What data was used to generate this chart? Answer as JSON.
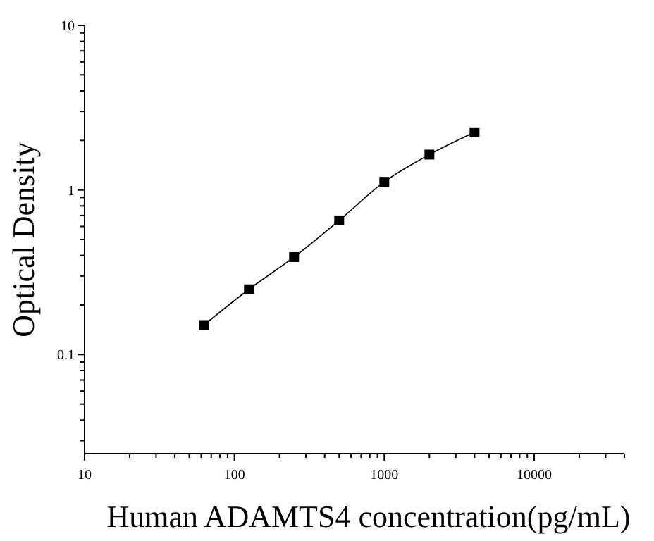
{
  "chart_data": {
    "type": "line",
    "xlabel": "Human ADAMTS4 concentration(pg/mL)",
    "ylabel": "Optical Density",
    "log": "xy",
    "marker": "square",
    "line_style": "solid",
    "grid": false,
    "xlim": [
      10,
      40000
    ],
    "ylim": [
      0.025,
      10
    ],
    "xticks": [
      10,
      {
        "value": 20,
        "label": null
      },
      {
        "value": 30,
        "label": null
      },
      {
        "value": 40,
        "label": null
      },
      {
        "value": 50,
        "label": null
      },
      {
        "value": 60,
        "label": null
      },
      {
        "value": 70,
        "label": null
      },
      {
        "value": 80,
        "label": null
      },
      {
        "value": 90,
        "label": null
      },
      100,
      {
        "value": 200,
        "label": null
      },
      {
        "value": 300,
        "label": null
      },
      {
        "value": 400,
        "label": null
      },
      {
        "value": 500,
        "label": null
      },
      {
        "value": 600,
        "label": null
      },
      {
        "value": 700,
        "label": null
      },
      {
        "value": 800,
        "label": null
      },
      {
        "value": 900,
        "label": null
      },
      1000,
      {
        "value": 2000,
        "label": null
      },
      {
        "value": 3000,
        "label": null
      },
      {
        "value": 4000,
        "label": null
      },
      {
        "value": 5000,
        "label": null
      },
      {
        "value": 6000,
        "label": null
      },
      {
        "value": 7000,
        "label": null
      },
      {
        "value": 8000,
        "label": null
      },
      {
        "value": 9000,
        "label": null
      },
      10000,
      {
        "value": 20000,
        "label": null
      },
      {
        "value": 30000,
        "label": null
      },
      {
        "value": 40000,
        "label": null
      }
    ],
    "yticks": [
      {
        "value": 0.03,
        "label": null
      },
      {
        "value": 0.04,
        "label": null
      },
      {
        "value": 0.05,
        "label": null
      },
      {
        "value": 0.06,
        "label": null
      },
      {
        "value": 0.07,
        "label": null
      },
      {
        "value": 0.08,
        "label": null
      },
      {
        "value": 0.09,
        "label": null
      },
      {
        "value": 0.1,
        "label": "0.1"
      },
      {
        "value": 0.2,
        "label": null
      },
      {
        "value": 0.3,
        "label": null
      },
      {
        "value": 0.4,
        "label": null
      },
      {
        "value": 0.5,
        "label": null
      },
      {
        "value": 0.6,
        "label": null
      },
      {
        "value": 0.7,
        "label": null
      },
      {
        "value": 0.8,
        "label": null
      },
      {
        "value": 0.9,
        "label": null
      },
      1,
      {
        "value": 2,
        "label": null
      },
      {
        "value": 3,
        "label": null
      },
      {
        "value": 4,
        "label": null
      },
      {
        "value": 5,
        "label": null
      },
      {
        "value": 6,
        "label": null
      },
      {
        "value": 7,
        "label": null
      },
      {
        "value": 8,
        "label": null
      },
      {
        "value": 9,
        "label": null
      },
      10
    ],
    "series": [
      {
        "color": "#000000",
        "x": [
          62.5,
          125,
          250,
          500,
          1000,
          2000,
          4000
        ],
        "values": [
          0.151,
          0.249,
          0.391,
          0.653,
          1.12,
          1.64,
          2.24
        ]
      }
    ]
  }
}
